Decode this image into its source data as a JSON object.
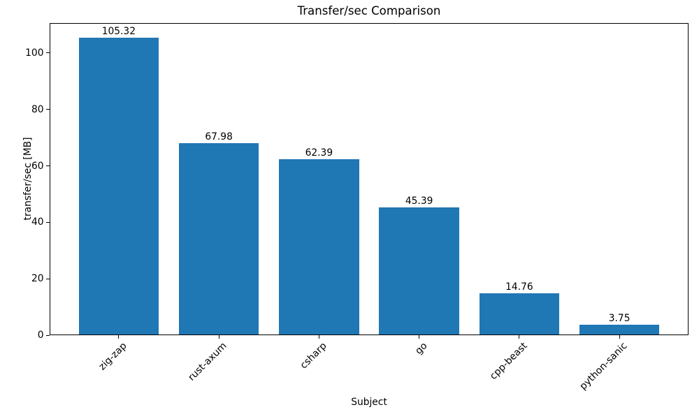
{
  "chart_data": {
    "type": "bar",
    "title": "Transfer/sec Comparison",
    "xlabel": "Subject",
    "ylabel": "transfer/sec [MB]",
    "categories": [
      "zig-zap",
      "rust-axum",
      "csharp",
      "go",
      "cpp-beast",
      "python-sanic"
    ],
    "values": [
      105.32,
      67.98,
      62.39,
      45.39,
      14.76,
      3.75
    ],
    "bar_labels": [
      "105.32",
      "67.98",
      "62.39",
      "45.39",
      "14.76",
      "3.75"
    ],
    "yticks": [
      0,
      20,
      40,
      60,
      80,
      100
    ],
    "ylim": [
      0,
      110.6
    ],
    "xlim": [
      -0.69,
      5.69
    ],
    "bar_width_units": 0.8,
    "x_tick_rotation_deg": 45,
    "grid": false,
    "legend": false,
    "colors": {
      "bar": "#1f77b4",
      "text": "#000000",
      "spine": "#000000",
      "background": "#ffffff"
    }
  }
}
